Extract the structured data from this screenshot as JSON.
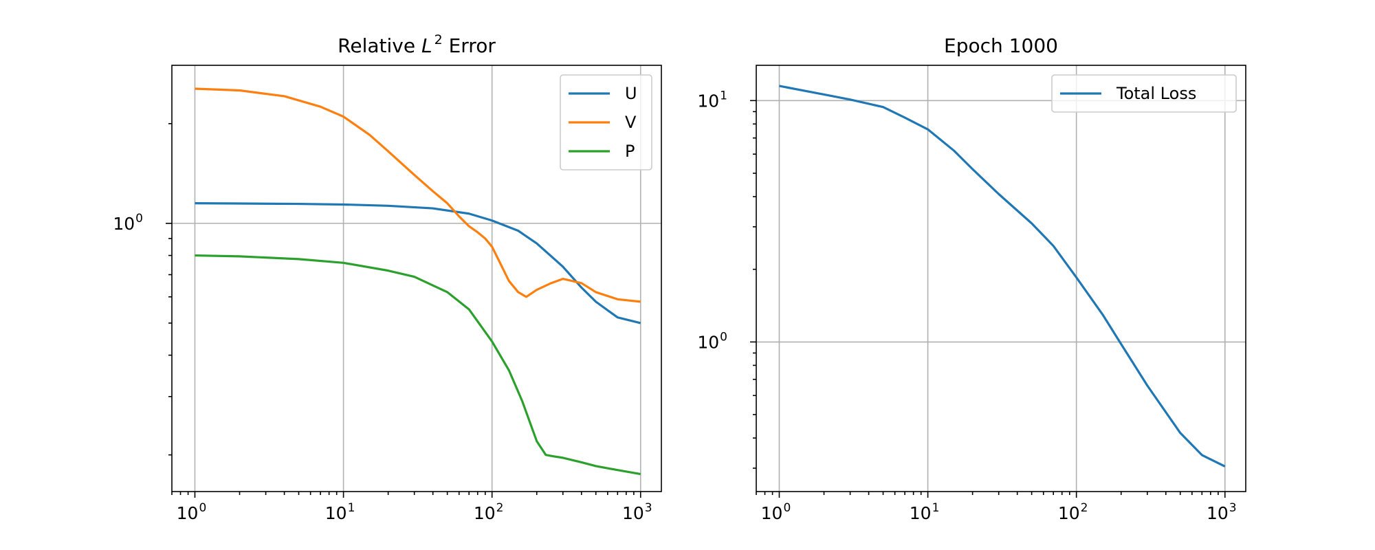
{
  "chart_data": [
    {
      "type": "line",
      "title": "Relative L2 Error",
      "title_parts": {
        "pre": "Relative ",
        "var": "L",
        "sup": "2",
        "post": " Error"
      },
      "xscale": "log",
      "yscale": "log",
      "xlim": [
        0.7,
        1380
      ],
      "ylim": [
        0.155,
        3.0
      ],
      "grid": true,
      "legend_position": "upper right",
      "x_ticks": [
        {
          "value": 1,
          "base": "10",
          "exp": "0"
        },
        {
          "value": 10,
          "base": "10",
          "exp": "1"
        },
        {
          "value": 100,
          "base": "10",
          "exp": "2"
        },
        {
          "value": 1000,
          "base": "10",
          "exp": "3"
        }
      ],
      "y_ticks": [
        {
          "value": 1,
          "base": "10",
          "exp": "0"
        }
      ],
      "series": [
        {
          "name": "U",
          "color": "#1f77b4",
          "x": [
            1,
            2,
            5,
            10,
            20,
            40,
            70,
            100,
            150,
            200,
            300,
            400,
            500,
            700,
            1000
          ],
          "y": [
            1.15,
            1.148,
            1.145,
            1.14,
            1.13,
            1.11,
            1.07,
            1.02,
            0.95,
            0.87,
            0.74,
            0.64,
            0.58,
            0.52,
            0.5
          ]
        },
        {
          "name": "V",
          "color": "#ff7f0e",
          "x": [
            1,
            2,
            4,
            7,
            10,
            15,
            20,
            30,
            40,
            50,
            60,
            70,
            80,
            90,
            100,
            110,
            130,
            150,
            170,
            200,
            250,
            300,
            400,
            500,
            700,
            1000
          ],
          "y": [
            2.55,
            2.52,
            2.42,
            2.25,
            2.1,
            1.85,
            1.65,
            1.4,
            1.25,
            1.15,
            1.05,
            0.98,
            0.94,
            0.9,
            0.85,
            0.78,
            0.67,
            0.62,
            0.6,
            0.63,
            0.66,
            0.68,
            0.66,
            0.62,
            0.59,
            0.58
          ]
        },
        {
          "name": "P",
          "color": "#2ca02c",
          "x": [
            1,
            2,
            5,
            10,
            20,
            30,
            50,
            70,
            100,
            130,
            160,
            200,
            230,
            260,
            300,
            400,
            500,
            700,
            1000
          ],
          "y": [
            0.8,
            0.795,
            0.78,
            0.76,
            0.72,
            0.69,
            0.62,
            0.55,
            0.44,
            0.36,
            0.29,
            0.22,
            0.2,
            0.198,
            0.196,
            0.19,
            0.185,
            0.18,
            0.175
          ]
        }
      ]
    },
    {
      "type": "line",
      "title": "Epoch 1000",
      "xscale": "log",
      "yscale": "log",
      "xlim": [
        0.7,
        1380
      ],
      "ylim": [
        0.24,
        14.0
      ],
      "grid": true,
      "legend_position": "upper right",
      "x_ticks": [
        {
          "value": 1,
          "base": "10",
          "exp": "0"
        },
        {
          "value": 10,
          "base": "10",
          "exp": "1"
        },
        {
          "value": 100,
          "base": "10",
          "exp": "2"
        },
        {
          "value": 1000,
          "base": "10",
          "exp": "3"
        }
      ],
      "y_ticks": [
        {
          "value": 1,
          "base": "10",
          "exp": "0"
        },
        {
          "value": 10,
          "base": "10",
          "exp": "1"
        }
      ],
      "series": [
        {
          "name": "Total Loss",
          "color": "#1f77b4",
          "x": [
            1,
            2,
            3,
            5,
            7,
            10,
            15,
            20,
            30,
            50,
            70,
            100,
            150,
            200,
            300,
            500,
            700,
            1000
          ],
          "y": [
            11.5,
            10.6,
            10.1,
            9.4,
            8.5,
            7.6,
            6.2,
            5.2,
            4.1,
            3.1,
            2.5,
            1.85,
            1.3,
            0.98,
            0.66,
            0.42,
            0.34,
            0.305
          ]
        }
      ]
    }
  ]
}
